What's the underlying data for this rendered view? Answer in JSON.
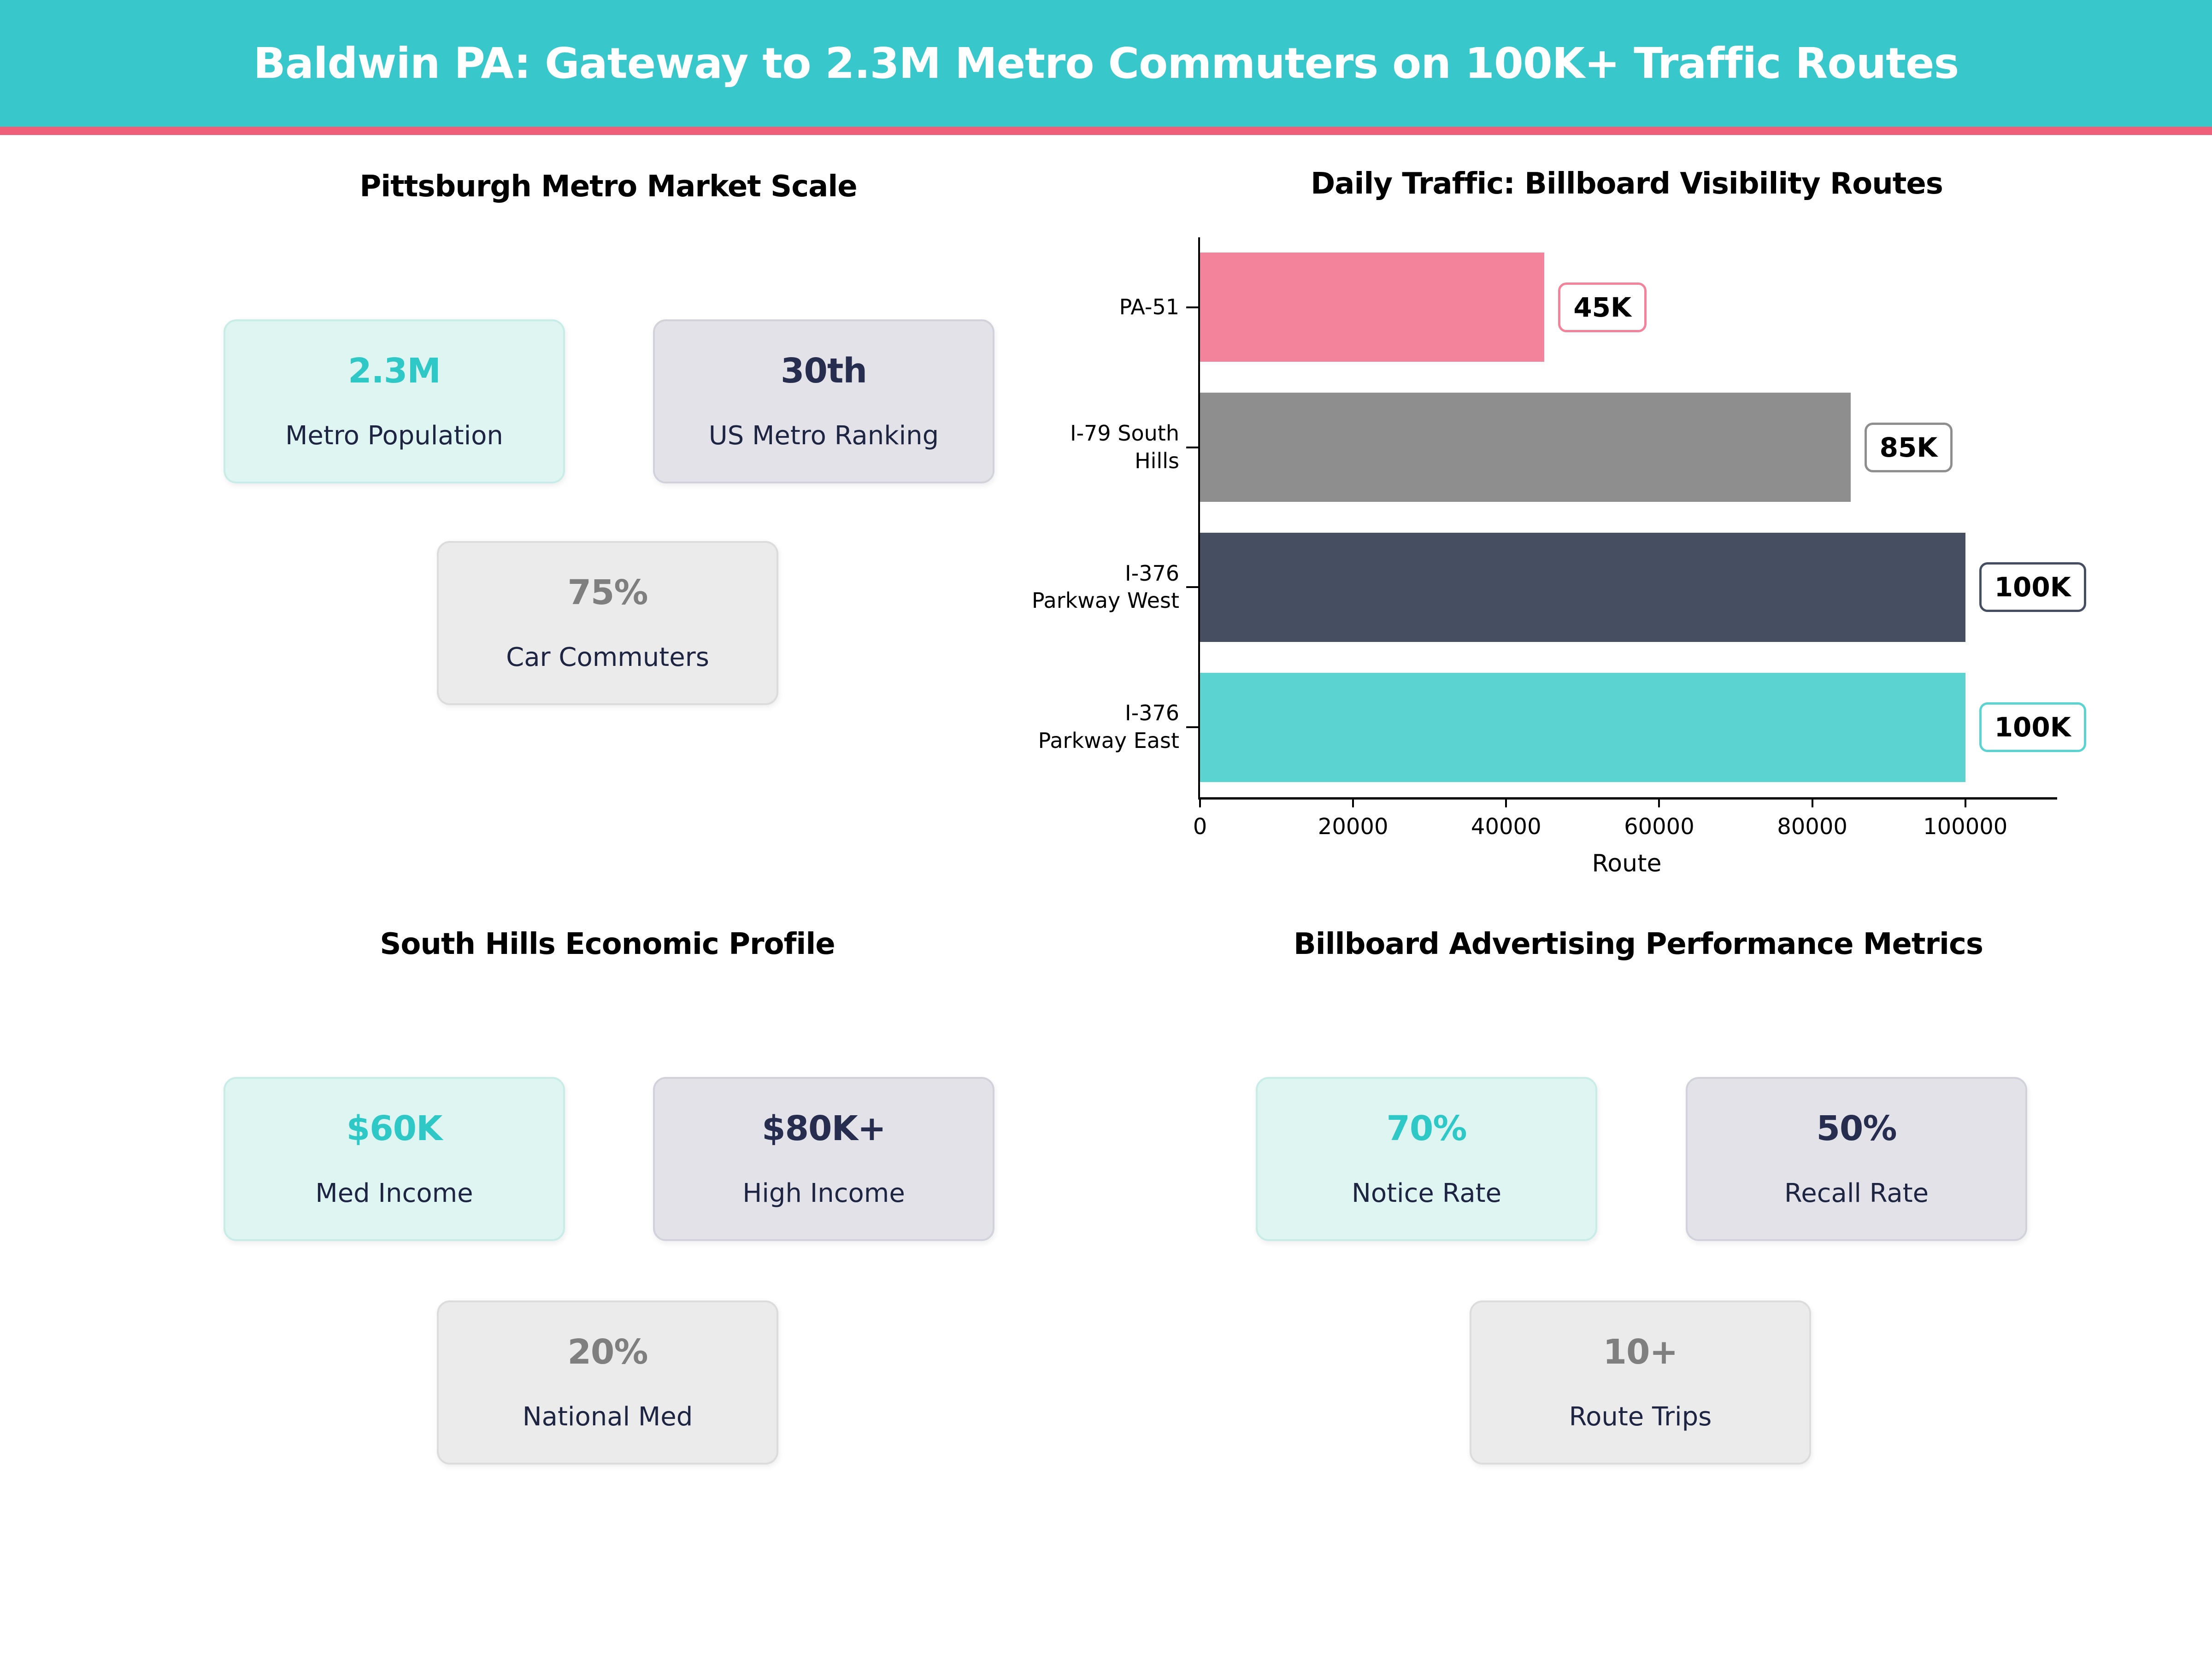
{
  "header": {
    "title": "Baldwin PA: Gateway to 2.3M Metro Commuters on 100K+ Traffic Routes",
    "bg_color": "#38C8CC",
    "accent_color": "#EE6079"
  },
  "metro_section": {
    "title": "Pittsburgh Metro Market Scale",
    "cards": [
      {
        "value": "2.3M",
        "label": "Metro Population"
      },
      {
        "value": "30th",
        "label": "US Metro Ranking"
      },
      {
        "value": "75%",
        "label": "Car Commuters"
      }
    ]
  },
  "economic_section": {
    "title": "South Hills Economic Profile",
    "cards": [
      {
        "value": "$60K",
        "label": "Med Income"
      },
      {
        "value": "$80K+",
        "label": "High Income"
      },
      {
        "value": "20%",
        "label": "National Med"
      }
    ]
  },
  "performance_section": {
    "title": "Billboard Advertising Performance Metrics",
    "cards": [
      {
        "value": "70%",
        "label": "Notice Rate"
      },
      {
        "value": "50%",
        "label": "Recall Rate"
      },
      {
        "value": "10+",
        "label": "Route Trips"
      }
    ]
  },
  "chart_data": {
    "type": "bar",
    "orientation": "horizontal",
    "title": "Daily Traffic: Billboard Visibility Routes",
    "categories": [
      "PA-51",
      "I-79 South Hills",
      "I-376 Parkway West",
      "I-376 Parkway East"
    ],
    "category_label_lines": [
      [
        "PA-51"
      ],
      [
        "I-79 South",
        "Hills"
      ],
      [
        "I-376",
        "Parkway West"
      ],
      [
        "I-376",
        "Parkway East"
      ]
    ],
    "values": [
      45000,
      85000,
      100000,
      100000
    ],
    "value_labels": [
      "45K",
      "85K",
      "100K",
      "100K"
    ],
    "bar_colors": [
      "#F2839A",
      "#8E8E8E",
      "#464E62",
      "#5AD3D1"
    ],
    "xlabel": "Route",
    "xlim": [
      0,
      112000
    ],
    "xticks": [
      0,
      20000,
      40000,
      60000,
      80000,
      100000
    ],
    "grid": false,
    "legend": false
  }
}
